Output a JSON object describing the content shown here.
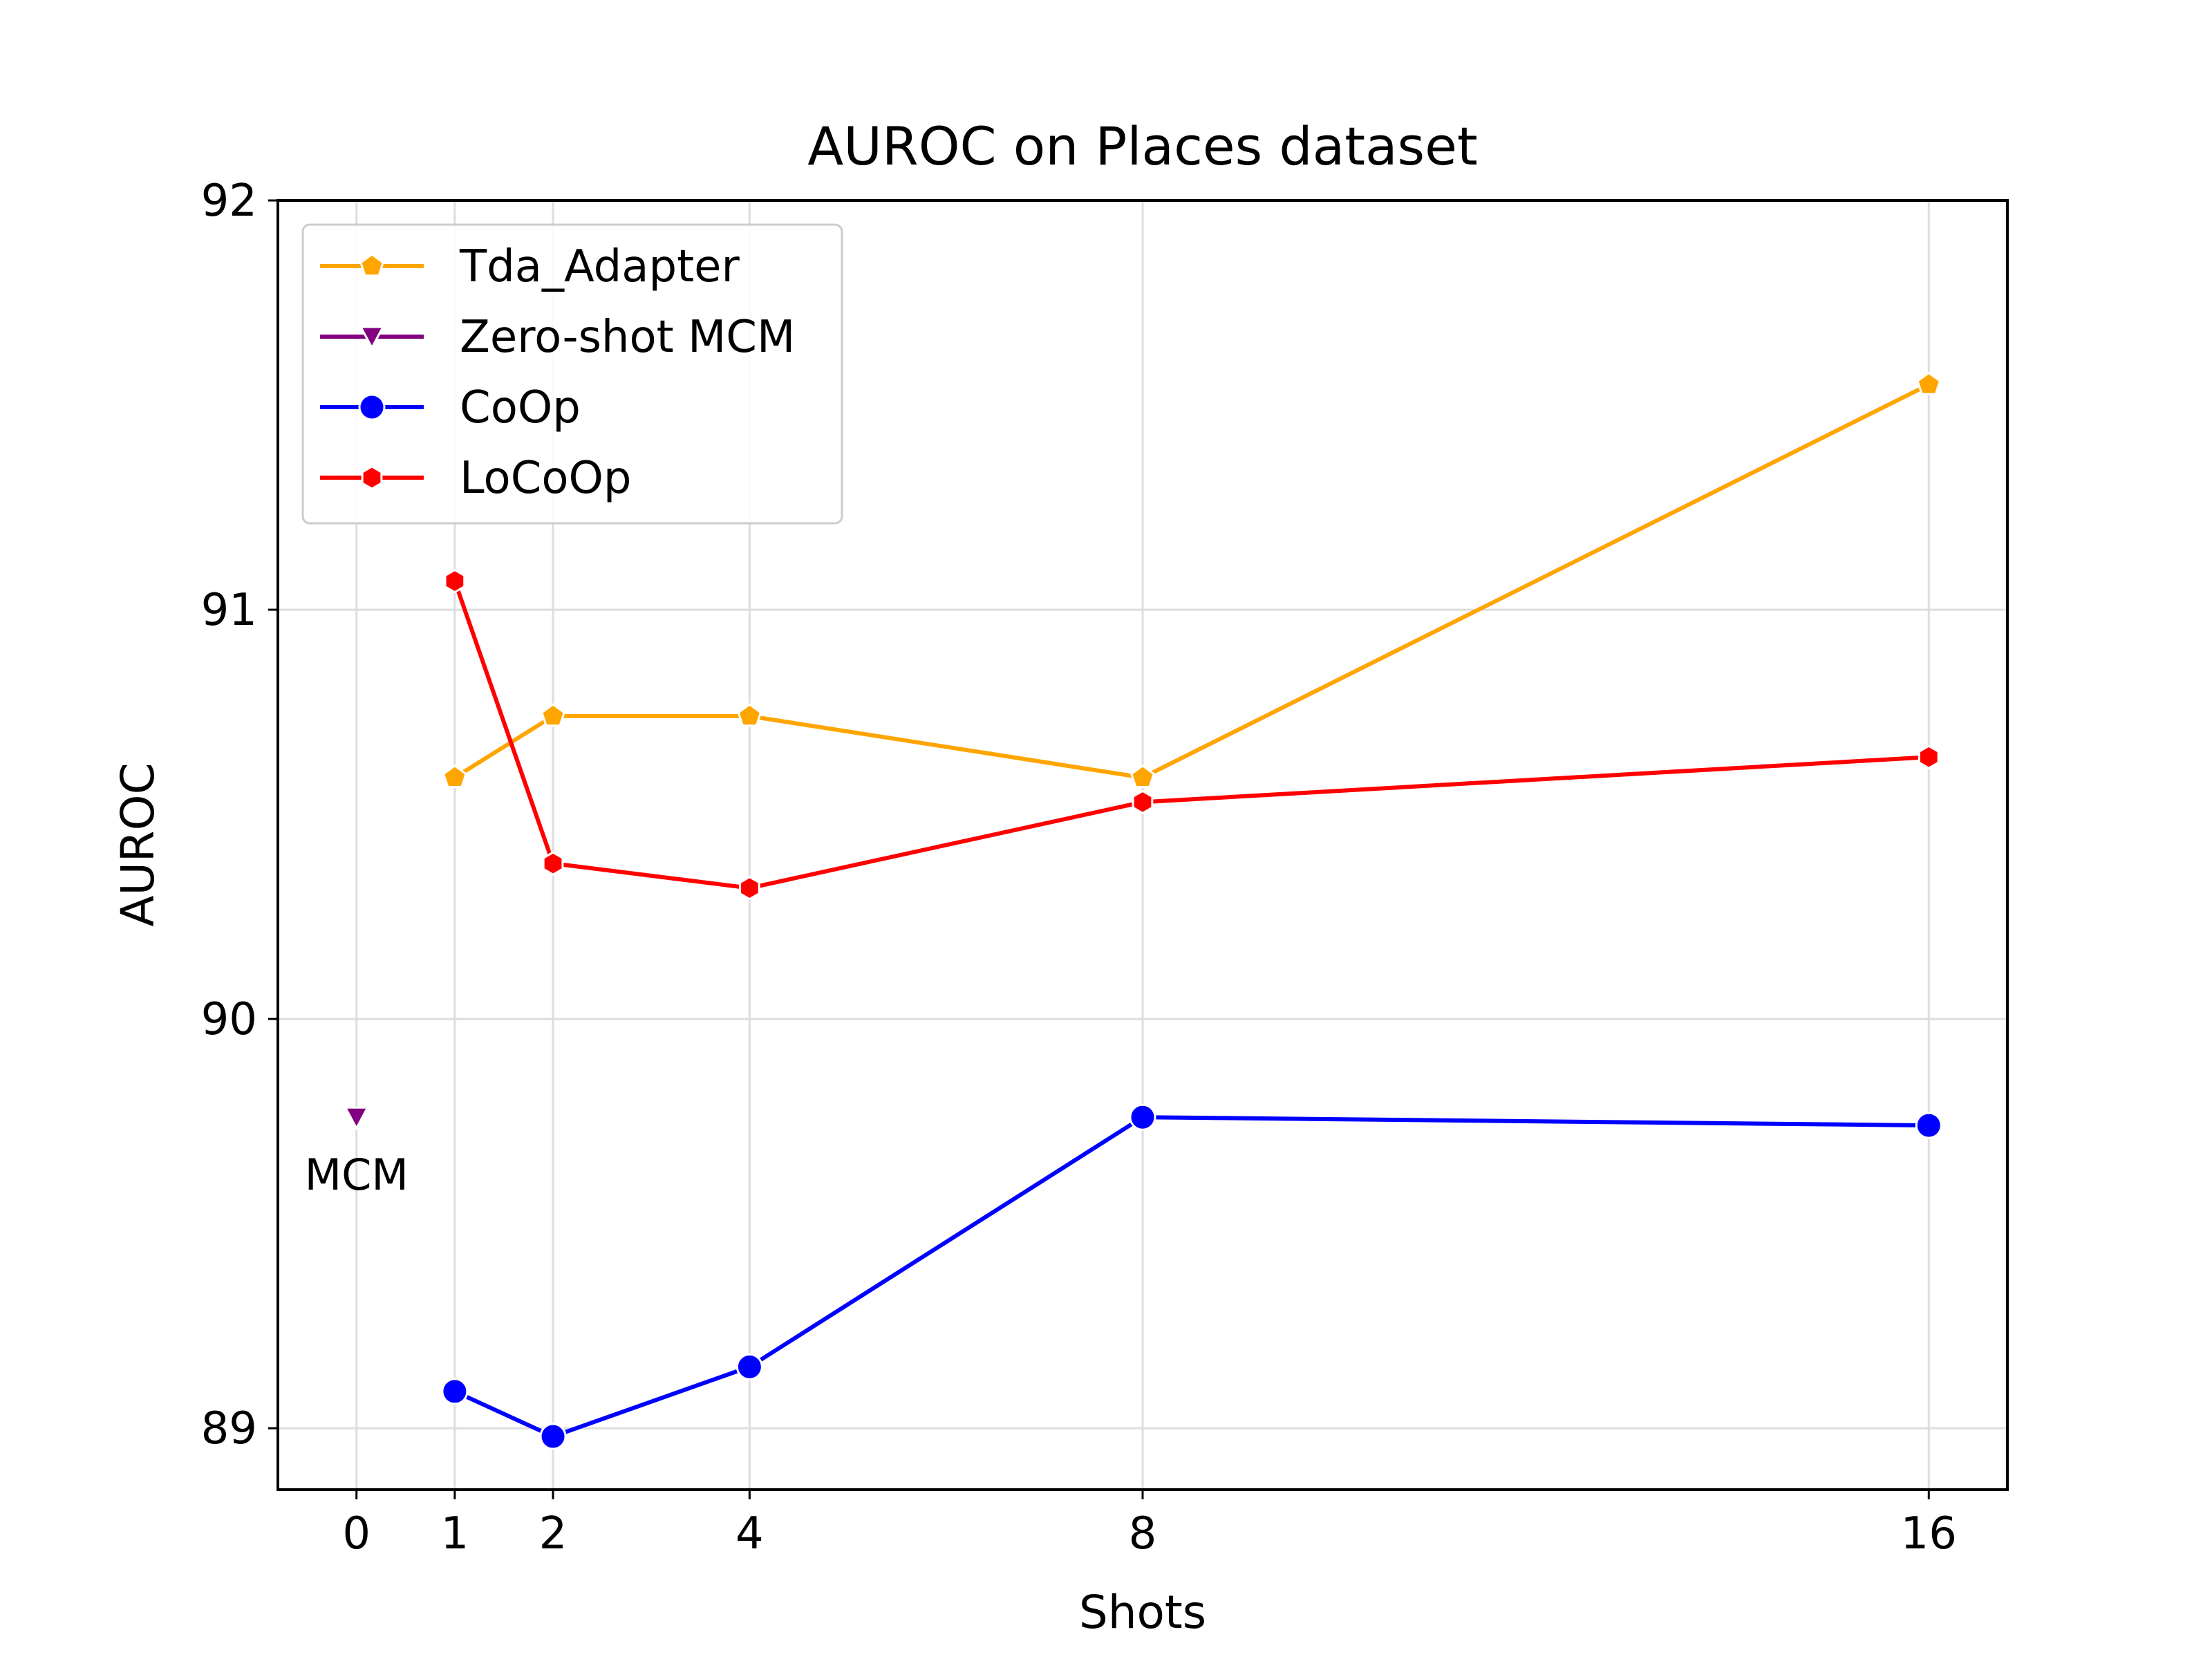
{
  "chart_data": {
    "type": "line",
    "title": "AUROC on Places dataset",
    "xlabel": "Shots",
    "ylabel": "AUROC",
    "x_ticks": [
      0,
      1,
      2,
      4,
      8,
      16
    ],
    "x_tick_labels": [
      "0",
      "1",
      "2",
      "4",
      "8",
      "16"
    ],
    "y_ticks": [
      89,
      90,
      91,
      92
    ],
    "y_tick_labels": [
      "89",
      "90",
      "91",
      "92"
    ],
    "xlim": [
      -0.8,
      16.8
    ],
    "ylim": [
      88.85,
      92
    ],
    "grid": true,
    "legend_position": "top-left",
    "series": [
      {
        "name": "Tda_Adapter",
        "color": "#FFA500",
        "marker": "pentagon",
        "x": [
          1,
          2,
          4,
          8,
          16
        ],
        "y": [
          90.59,
          90.74,
          90.74,
          90.59,
          91.55
        ]
      },
      {
        "name": "Zero-shot MCM",
        "color": "#800080",
        "marker": "triangle-down",
        "x": [
          0
        ],
        "y": [
          89.76
        ]
      },
      {
        "name": "CoOp",
        "color": "#0000FF",
        "marker": "circle",
        "x": [
          1,
          2,
          4,
          8,
          16
        ],
        "y": [
          89.09,
          88.98,
          89.15,
          89.76,
          89.74
        ]
      },
      {
        "name": "LoCoOp",
        "color": "#FF0000",
        "marker": "hexagon",
        "x": [
          1,
          2,
          4,
          8,
          16
        ],
        "y": [
          91.07,
          90.38,
          90.32,
          90.53,
          90.64
        ]
      }
    ],
    "annotations": [
      {
        "text": "MCM",
        "x": 0,
        "y": 89.62
      }
    ]
  }
}
